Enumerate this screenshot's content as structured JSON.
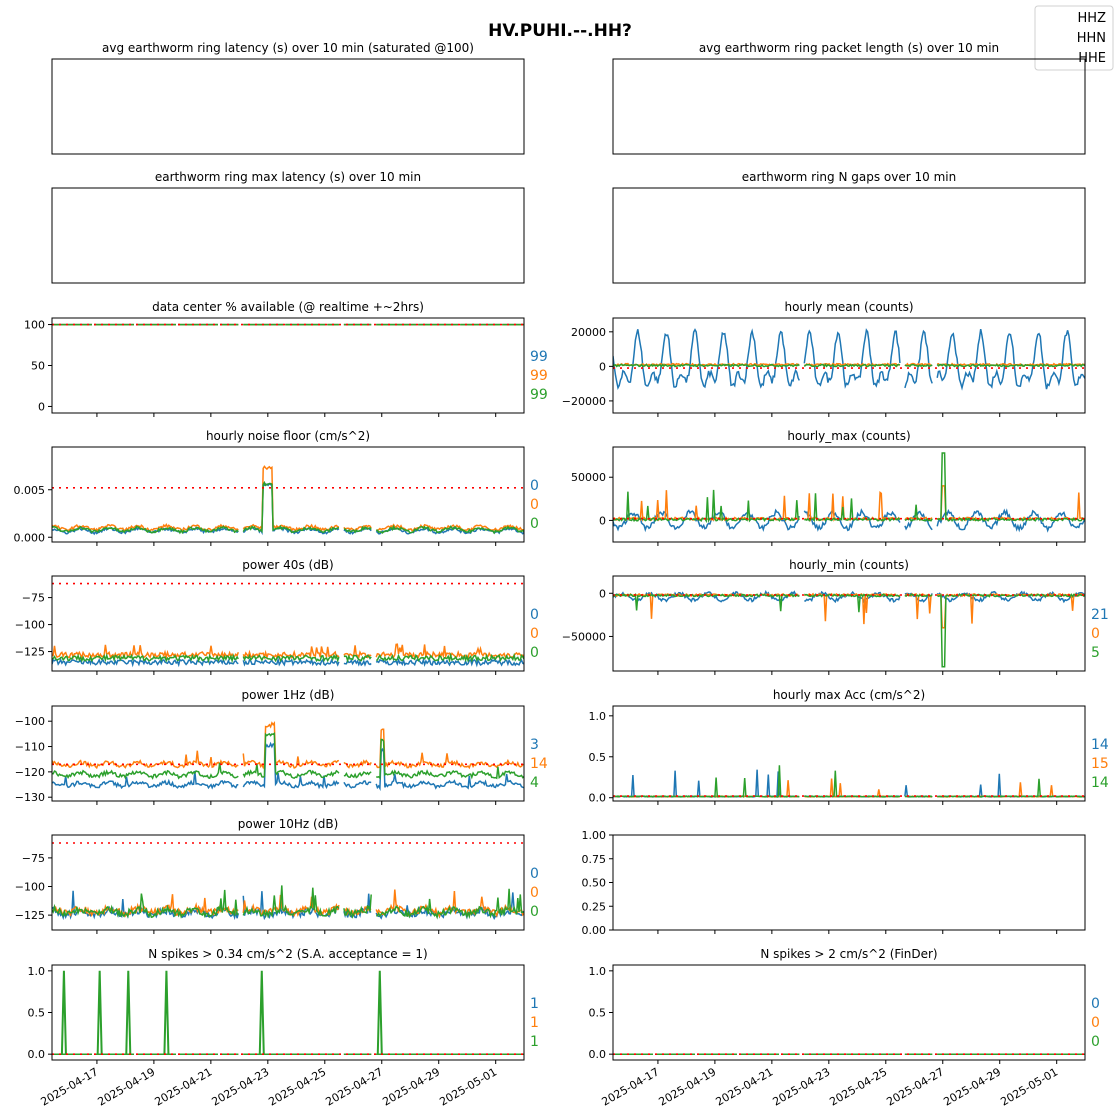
{
  "figure_title": "HV.PUHI.--.HH?",
  "legend": [
    {
      "label": "HHZ",
      "color": "#1f77b4"
    },
    {
      "label": "HHN",
      "color": "#ff7f0e"
    },
    {
      "label": "HHE",
      "color": "#2ca02c"
    }
  ],
  "date_ticks": [
    "2025-04-17",
    "2025-04-19",
    "2025-04-21",
    "2025-04-23",
    "2025-04-25",
    "2025-04-27",
    "2025-04-29",
    "2025-05-01"
  ],
  "colors": {
    "HHZ": "#1f77b4",
    "HHN": "#ff7f0e",
    "HHE": "#2ca02c",
    "threshold": "#ff0000"
  },
  "chart_data": [
    {
      "id": "avg_latency",
      "title": "avg earthworm ring latency (s)   over 10 min (saturated @100)",
      "type": "line",
      "empty": true,
      "series": []
    },
    {
      "id": "avg_packet_length",
      "title": "avg earthworm ring packet length (s)   over 10 min",
      "type": "line",
      "empty": true,
      "series": []
    },
    {
      "id": "max_latency",
      "title": "earthworm ring max latency (s)   over 10 min",
      "type": "line",
      "empty": true,
      "series": []
    },
    {
      "id": "n_gaps",
      "title": "earthworm ring N gaps   over 10 min",
      "type": "line",
      "empty": true,
      "series": []
    },
    {
      "id": "availability",
      "title": "data center % available (@ realtime +~2hrs)",
      "type": "line",
      "ylim": [
        -8,
        108
      ],
      "yticks": [
        "100",
        "50",
        "0"
      ],
      "threshold": 100,
      "pattern": "flat",
      "base": [
        100,
        100,
        100
      ],
      "end_labels": [
        "99",
        "99",
        "99"
      ]
    },
    {
      "id": "hourly_mean",
      "title": "hourly mean (counts)",
      "type": "line",
      "ylim": [
        -27000,
        28000
      ],
      "yticks": [
        "20000",
        "0",
        "−20000"
      ],
      "threshold": -1000,
      "pattern": "diurnal_mean",
      "base": [
        0,
        1000,
        500
      ]
    },
    {
      "id": "noise_floor",
      "title": "hourly noise floor (cm/s^2)",
      "type": "line",
      "ylim": [
        -0.0005,
        0.0095
      ],
      "yticks": [
        "0.005",
        "0.000"
      ],
      "threshold": 0.0052,
      "pattern": "noise",
      "base": [
        0.0007,
        0.001,
        0.0008
      ],
      "end_labels": [
        "0",
        "0",
        "0"
      ]
    },
    {
      "id": "hourly_max",
      "title": "hourly_max (counts)",
      "type": "line",
      "ylim": [
        -25000,
        85000
      ],
      "yticks": [
        "50000",
        "0"
      ],
      "threshold": 2000,
      "pattern": "hmax",
      "base": [
        0,
        2000,
        1000
      ]
    },
    {
      "id": "power_40s",
      "title": "power 40s (dB)",
      "type": "line",
      "ylim": [
        -143,
        -55
      ],
      "yticks": [
        "−75",
        "−100",
        "−125"
      ],
      "threshold": -62,
      "pattern": "p40",
      "base": [
        -135,
        -128,
        -131
      ],
      "end_labels": [
        "0",
        "0",
        "0"
      ]
    },
    {
      "id": "hourly_min",
      "title": "hourly_min (counts)",
      "type": "line",
      "ylim": [
        -90000,
        20000
      ],
      "yticks": [
        "0",
        "−50000"
      ],
      "threshold": -2000,
      "pattern": "hmin",
      "base": [
        -3000,
        -2000,
        -2500
      ],
      "end_labels": [
        "21",
        "0",
        "5"
      ]
    },
    {
      "id": "power_1hz",
      "title": "power 1Hz (dB)",
      "type": "line",
      "ylim": [
        -131.5,
        -94
      ],
      "yticks": [
        "−100",
        "−110",
        "−120",
        "−130"
      ],
      "threshold": -117,
      "pattern": "p1",
      "base": [
        -125,
        -117,
        -121
      ],
      "end_labels": [
        "3",
        "14",
        "4"
      ]
    },
    {
      "id": "max_acc",
      "title": "hourly max Acc (cm/s^2)",
      "type": "line",
      "ylim": [
        -0.04,
        1.12
      ],
      "yticks": [
        "1.0",
        "0.5",
        "0.0"
      ],
      "threshold": 0.02,
      "pattern": "acc",
      "base": [
        0.01,
        0.01,
        0.01
      ],
      "end_labels": [
        "14",
        "15",
        "14"
      ]
    },
    {
      "id": "power_10hz",
      "title": "power 10Hz (dB)",
      "type": "line",
      "ylim": [
        -138,
        -55
      ],
      "yticks": [
        "−75",
        "−100",
        "−125"
      ],
      "threshold": -62,
      "pattern": "p10",
      "base": [
        -123,
        -121,
        -122
      ],
      "end_labels": [
        "0",
        "0",
        "0"
      ]
    },
    {
      "id": "blank_axes",
      "title": "",
      "type": "line",
      "empty": true,
      "ylim": [
        0,
        1
      ],
      "yticks": [
        "1.00",
        "0.75",
        "0.50",
        "0.25",
        "0.00"
      ],
      "series": []
    },
    {
      "id": "spikes_034",
      "title": "N spikes > 0.34 cm/s^2 (S.A. acceptance = 1)",
      "type": "line",
      "ylim": [
        -0.07,
        1.07
      ],
      "yticks": [
        "1.0",
        "0.5",
        "0.0"
      ],
      "threshold": 0,
      "pattern": "spikes",
      "base": [
        0,
        0,
        0
      ],
      "spike_dates": [
        "2025-04-15T16:00",
        "2025-04-16T22:00",
        "2025-04-17T22:00",
        "2025-04-19T06:00",
        "2025-04-22T14:00",
        "2025-04-26T17:00"
      ],
      "end_labels": [
        "1",
        "1",
        "1"
      ]
    },
    {
      "id": "spikes_2",
      "title": "N spikes > 2 cm/s^2 (FinDer)",
      "type": "line",
      "ylim": [
        -0.07,
        1.07
      ],
      "yticks": [
        "1.0",
        "0.5",
        "0.0"
      ],
      "threshold": 0,
      "pattern": "zero",
      "base": [
        0,
        0,
        0
      ],
      "end_labels": [
        "0",
        "0",
        "0"
      ]
    }
  ]
}
